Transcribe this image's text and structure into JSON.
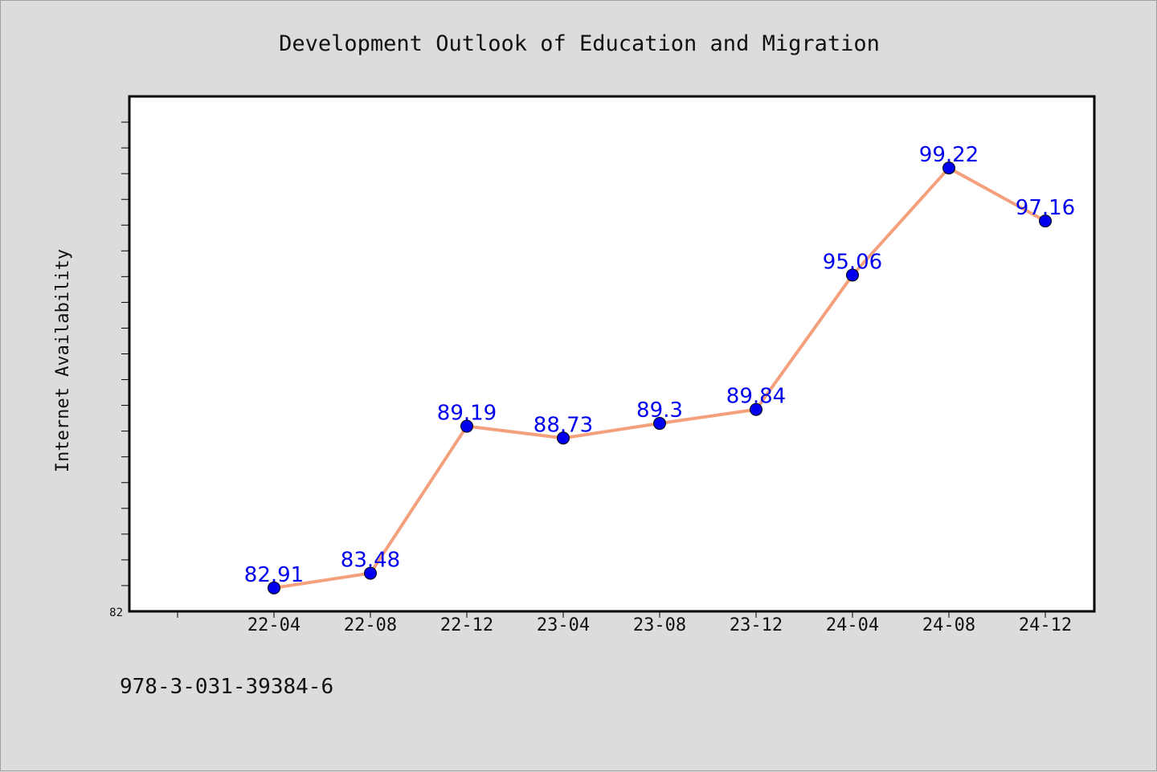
{
  "chart_data": {
    "type": "line",
    "title": "Development Outlook of Education and Migration",
    "ylabel": "Internet Availability",
    "xlabel": "",
    "categories": [
      "22-04",
      "22-08",
      "22-12",
      "23-04",
      "23-08",
      "23-12",
      "24-04",
      "24-08",
      "24-12"
    ],
    "series": [
      {
        "values": [
          82.91,
          83.48,
          89.19,
          88.73,
          89.3,
          89.84,
          95.06,
          99.22,
          97.16
        ],
        "labels": [
          "82.91",
          "83.48",
          "89.19",
          "88.73",
          "89.3",
          "89.84",
          "95.06",
          "99.22",
          "97.16"
        ],
        "line_color": "#f4a07c",
        "marker_color": "#0000ee",
        "label_color": "#0000ee"
      }
    ],
    "ylim": [
      82,
      102
    ],
    "y_tick_labels": [
      "82"
    ],
    "grid": false,
    "legend": "none"
  },
  "footer": {
    "isbn": "978-3-031-39384-6"
  },
  "colors": {
    "background": "#dcdcdc",
    "plot_background": "#ffffff",
    "axis": "#000000"
  }
}
